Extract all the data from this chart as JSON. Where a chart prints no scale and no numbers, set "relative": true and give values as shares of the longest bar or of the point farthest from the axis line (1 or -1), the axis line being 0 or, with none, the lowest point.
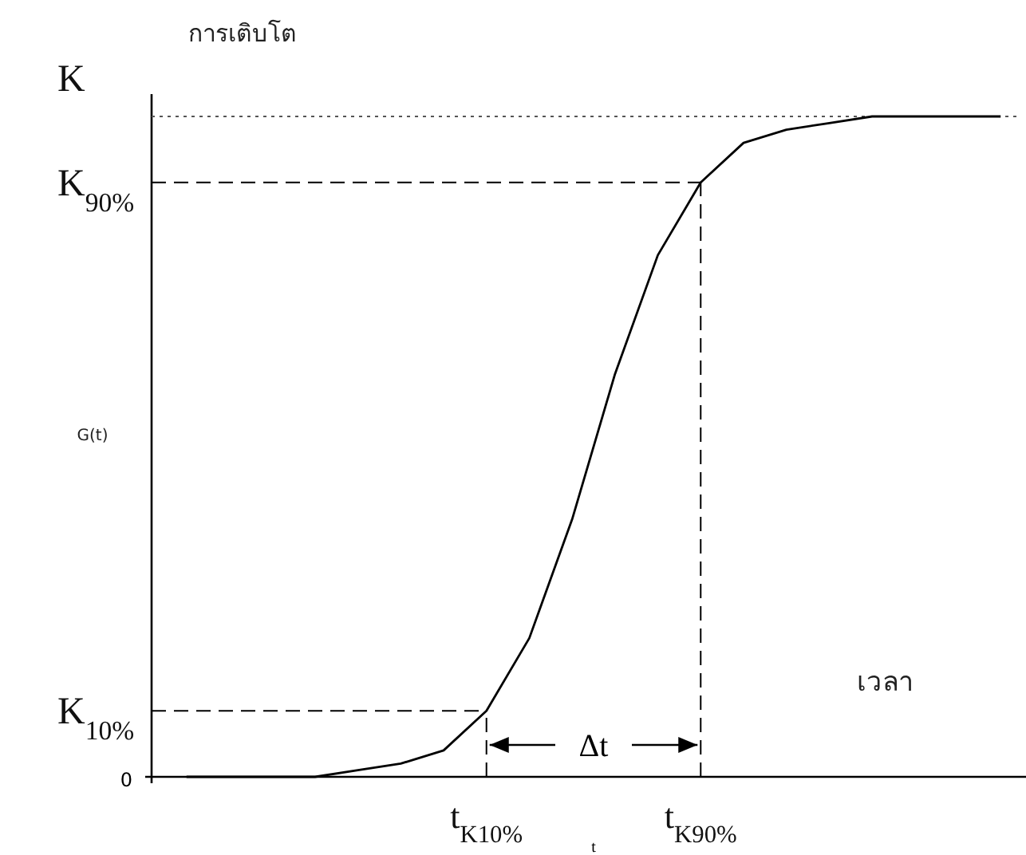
{
  "chart_data": {
    "type": "line",
    "relative": true,
    "title": "การเติบโต",
    "ylabel": "G(t)",
    "xlabel": "เวลา",
    "categories": [
      null,
      null,
      null,
      null,
      null,
      null,
      null,
      "t$_{K10%}$",
      null,
      null,
      null,
      null,
      "t$_{K90%}$",
      null,
      null,
      null,
      null,
      null,
      null,
      null
    ],
    "series": [
      {
        "color": "#000000",
        "values": [
          0,
          0,
          0,
          0,
          0.01,
          0.02,
          0.04,
          0.1,
          0.21,
          0.39,
          0.61,
          0.79,
          0.9,
          0.96,
          0.98,
          0.99,
          1,
          1,
          1,
          1
        ]
      }
    ],
    "ref_lines": [
      {
        "axis": "y",
        "value": 1,
        "label": "K",
        "line_style": "dotted",
        "color": "#555555"
      },
      {
        "axis": "y",
        "value": 0.9,
        "label": "K$_{90%}$",
        "line_style": "dashed",
        "color": "#000000"
      },
      {
        "axis": "y",
        "value": 0.1,
        "label": "K$_{10%}$",
        "line_style": "dashed",
        "color": "#000000"
      },
      {
        "axis": "x",
        "value": "t$_{K10%}$",
        "line_style": "dashed",
        "color": "#000000"
      },
      {
        "axis": "x",
        "value": "t$_{K90%}$",
        "line_style": "dashed",
        "color": "#000000"
      }
    ],
    "annotations": [
      "0",
      "Δt",
      "t"
    ],
    "grid": false,
    "marker": "none",
    "line_style": "solid"
  }
}
